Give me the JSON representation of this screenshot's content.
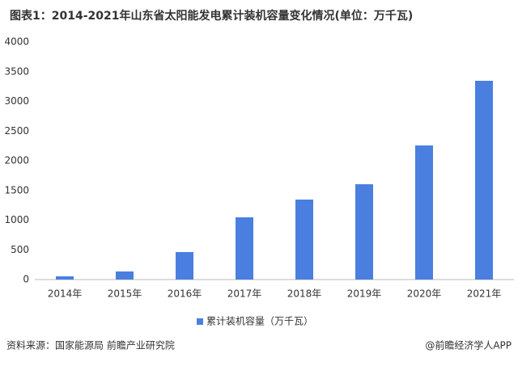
{
  "chart_data": {
    "type": "bar",
    "title": "图表1：2014-2021年山东省太阳能发电累计装机容量变化情况(单位：万千瓦)",
    "categories": [
      "2014年",
      "2015年",
      "2016年",
      "2017年",
      "2018年",
      "2019年",
      "2020年",
      "2021年"
    ],
    "series": [
      {
        "name": "累计装机容量（万千瓦）",
        "color": "#4a7fe0",
        "values": [
          54,
          136,
          463,
          1048,
          1347,
          1605,
          2258,
          3347
        ]
      }
    ],
    "ylim": [
      0,
      4000
    ],
    "yticks": [
      0,
      500,
      1000,
      1500,
      2000,
      2500,
      3000,
      3500,
      4000
    ],
    "grid": false,
    "legend": "bottom",
    "source": "资料来源：国家能源局 前瞻产业研究院",
    "credit": "@前瞻经济学人APP"
  }
}
